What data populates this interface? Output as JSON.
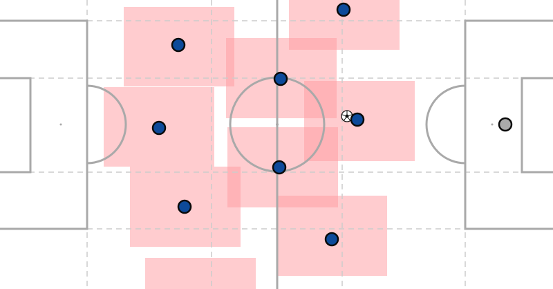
{
  "colors": {
    "pitch_background": "#ffffff",
    "pitch_lines": "#a9a9a9",
    "grid_lines": "#cccccc",
    "zone_fill": "#ff9aa0",
    "team_player_fill": "#0d4a9a",
    "team_player_stroke": "#0a0a0a",
    "goalkeeper_fill": "#aaaaaa",
    "ball_fill": "#ffffff",
    "ball_pattern": "#111111"
  },
  "players": [
    {
      "id": "player-1",
      "team": "blue",
      "role": "outfield"
    },
    {
      "id": "player-2",
      "team": "blue",
      "role": "outfield"
    },
    {
      "id": "player-3",
      "team": "blue",
      "role": "outfield"
    },
    {
      "id": "player-4",
      "team": "blue",
      "role": "outfield"
    },
    {
      "id": "player-5",
      "team": "blue",
      "role": "outfield"
    },
    {
      "id": "player-6",
      "team": "blue",
      "role": "outfield"
    },
    {
      "id": "player-7",
      "team": "blue",
      "role": "outfield"
    },
    {
      "id": "player-8",
      "team": "blue",
      "role": "outfield"
    },
    {
      "id": "player-9",
      "team": "blue",
      "role": "outfield"
    },
    {
      "id": "goalkeeper",
      "team": "grey",
      "role": "goalkeeper"
    }
  ],
  "ball": {
    "icon": "soccer-ball-icon"
  }
}
